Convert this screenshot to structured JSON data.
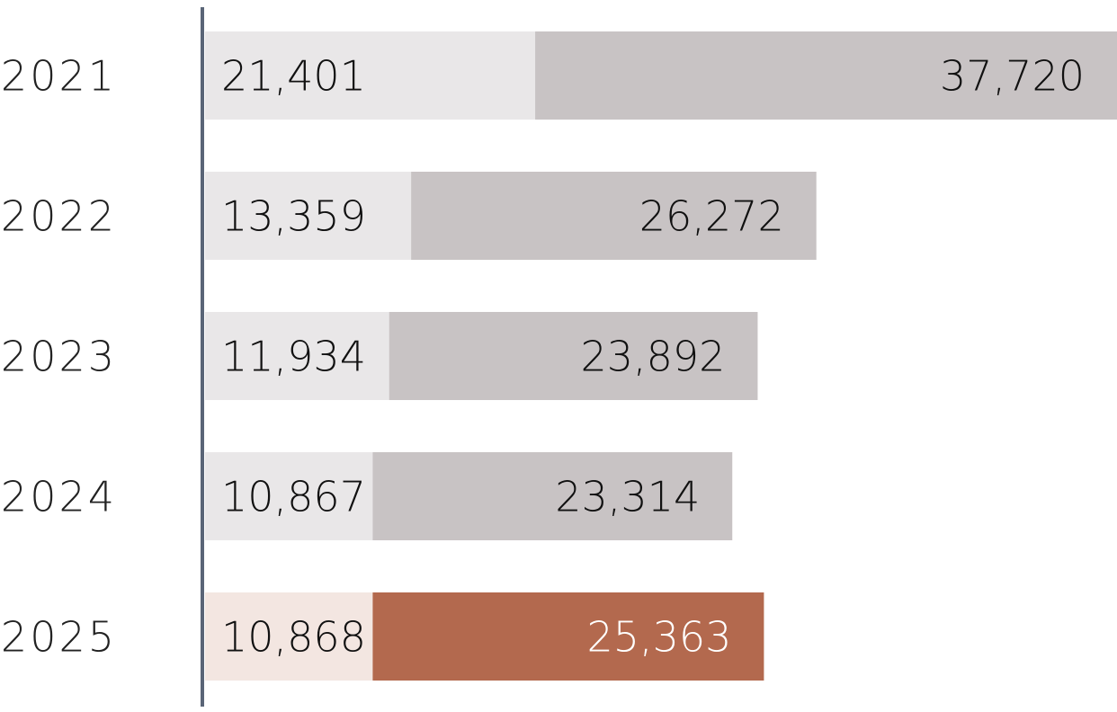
{
  "chart_data": {
    "type": "stacked-bar",
    "orientation": "horizontal",
    "categories": [
      "2021",
      "2022",
      "2023",
      "2024",
      "2025"
    ],
    "series": [
      {
        "values": [
          21401,
          13359,
          11934,
          10867,
          10868
        ],
        "value_labels": [
          "21,401",
          "13,359",
          "11,934",
          "10,867",
          "10,868"
        ],
        "colors": [
          "#e9e7e8",
          "#e9e7e8",
          "#e9e7e8",
          "#e9e7e8",
          "#f3e6e1"
        ]
      },
      {
        "values": [
          37720,
          26272,
          23892,
          23314,
          25363
        ],
        "value_labels": [
          "37,720",
          "26,272",
          "23,892",
          "23,314",
          "25,363"
        ],
        "colors": [
          "#c8c3c4",
          "#c8c3c4",
          "#c8c3c4",
          "#c8c3c4",
          "#b3694e"
        ]
      }
    ]
  }
}
